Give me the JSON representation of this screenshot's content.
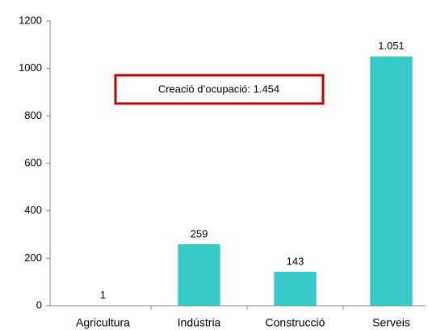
{
  "chart_data": {
    "type": "bar",
    "categories": [
      "Agricultura",
      "Indústria",
      "Construcció",
      "Serveis"
    ],
    "values": [
      1,
      259,
      143,
      1051
    ],
    "value_labels": [
      "1",
      "259",
      "143",
      "1.051"
    ],
    "color": "#36c9c9",
    "ylim": [
      0,
      1200
    ],
    "yticks": [
      0,
      200,
      400,
      600,
      800,
      1000,
      1200
    ],
    "grid": false,
    "annotation": "Creació d’ocupació: 1.454"
  }
}
